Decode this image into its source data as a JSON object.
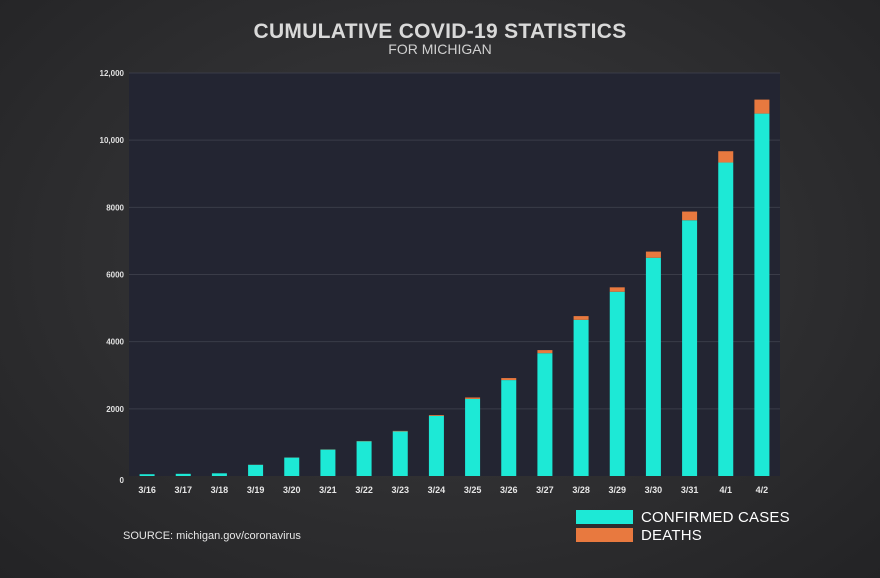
{
  "chart_data": {
    "type": "bar",
    "stacked": true,
    "title": "CUMULATIVE COVID-19 STATISTICS",
    "subtitle": "FOR MICHIGAN",
    "categories": [
      "3/16",
      "3/17",
      "3/18",
      "3/19",
      "3/20",
      "3/21",
      "3/22",
      "3/23",
      "3/24",
      "3/25",
      "3/26",
      "3/27",
      "3/28",
      "3/29",
      "3/30",
      "3/31",
      "4/1",
      "4/2"
    ],
    "series": [
      {
        "name": "CONFIRMED CASES",
        "color": "#1de9d6",
        "values": [
          53,
          65,
          80,
          334,
          549,
          787,
          1035,
          1328,
          1791,
          2295,
          2856,
          3657,
          4650,
          5486,
          6498,
          7615,
          9334,
          10791
        ]
      },
      {
        "name": "DEATHS",
        "color": "#e8793f",
        "values": [
          0,
          0,
          0,
          3,
          3,
          5,
          8,
          15,
          24,
          43,
          60,
          92,
          111,
          132,
          184,
          259,
          337,
          417
        ]
      }
    ],
    "y_ticks": [
      "0",
      "2000",
      "4000",
      "6000",
      "8000",
      "10,000",
      "12,000"
    ],
    "ylim": [
      0,
      12000
    ],
    "grid": true,
    "legend_position": "bottom-right"
  },
  "source": "SOURCE: michigan.gov/coronavirus",
  "colors": {
    "plot_bg": "#232532",
    "grid": "#3a3c48"
  }
}
